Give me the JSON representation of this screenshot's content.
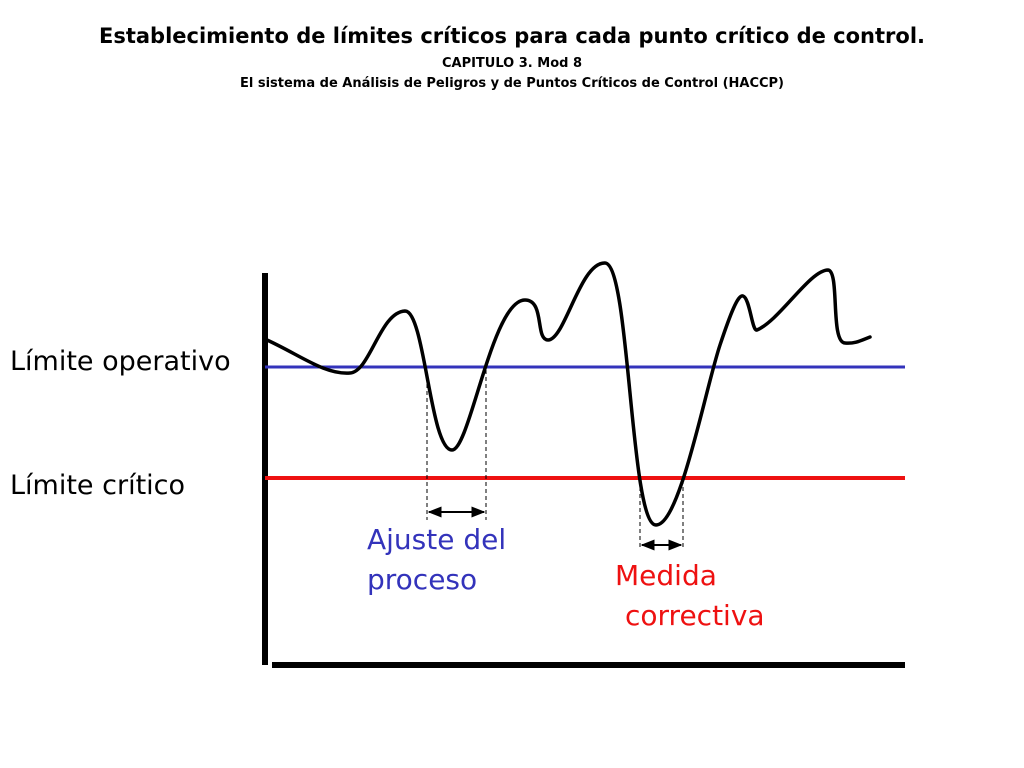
{
  "header": {
    "title": "Establecimiento de límites críticos para cada punto crítico de control.",
    "subtitle1": "CAPITULO 3. Mod 8",
    "subtitle2": "El sistema de Análisis de Peligros y de Puntos Críticos de Control (HACCP)"
  },
  "labels": {
    "operating_limit": "Límite operativo",
    "critical_limit": "Límite crítico"
  },
  "annotations": {
    "process_adjustment": {
      "line1": "Ajuste del",
      "line2": "proceso"
    },
    "corrective_action": {
      "line1": "Medida",
      "line2": "correctiva"
    }
  },
  "colors": {
    "operating_limit_line": "#3333bb",
    "critical_limit_line": "#ee1111",
    "process_curve": "#000000",
    "axes": "#000000",
    "adjustment_text": "#3333bb",
    "corrective_text": "#ee1111"
  }
}
